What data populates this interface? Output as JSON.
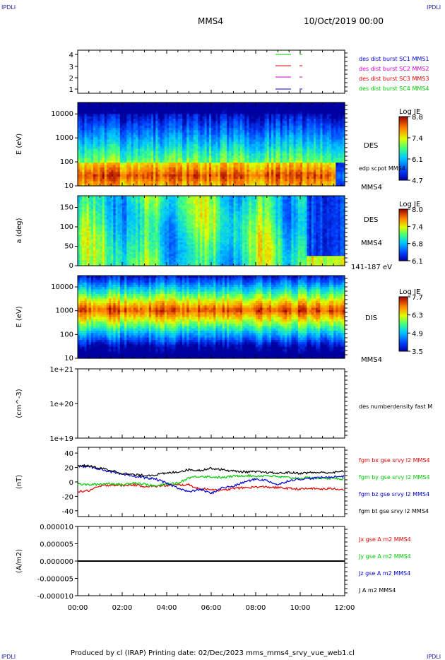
{
  "corner_logo": "IPDLI",
  "header": {
    "spacecraft": "MMS4",
    "datetime": "10/Oct/2019 00:00"
  },
  "footer": {
    "text": "Produced by cl (IRAP)   Printing date: 02/Dec/2023   mms_mms4_srvy_vue_web1.cl"
  },
  "colors": {
    "red": "#e00000",
    "green": "#00c800",
    "blue": "#0000d0",
    "magenta": "#d000d0",
    "black": "#000000"
  },
  "chart_data": [
    {
      "type": "line",
      "panel": "burst-availability",
      "yticks": [
        "1",
        "2",
        "3",
        "4"
      ],
      "legend": [
        {
          "label": "des dist burst SC1 MMS1",
          "color": "#0000d0"
        },
        {
          "label": "des dist burst SC2 MMS2",
          "color": "#d000d0"
        },
        {
          "label": "des dist burst SC3 MMS3",
          "color": "#e00000"
        },
        {
          "label": "des dist burst SC4 MMS4",
          "color": "#00c800"
        }
      ]
    },
    {
      "type": "heatmap",
      "panel": "electron-energy-spectrogram",
      "ylabel": "E (eV)",
      "yscale": "log",
      "ylim": [
        10,
        30000
      ],
      "yticks": [
        "10",
        "100",
        "1000",
        "10000"
      ],
      "colorbar": {
        "title": "Log JE",
        "ticks": [
          "8.8",
          "7.4",
          "6.1",
          "4.7"
        ],
        "range": [
          4.7,
          8.8
        ]
      },
      "labels": [
        "DES",
        "edp scpot MMS4",
        "MMS4"
      ]
    },
    {
      "type": "heatmap",
      "panel": "electron-pitch-angle",
      "ylabel": "a (deg)",
      "ylim": [
        0,
        180
      ],
      "yticks": [
        "0",
        "50",
        "100",
        "150"
      ],
      "colorbar": {
        "title": "Log JE",
        "ticks": [
          "8.0",
          "7.4",
          "6.8",
          "6.1"
        ],
        "range": [
          6.1,
          8.0
        ]
      },
      "labels": [
        "DES",
        "MMS4",
        "141-187 eV"
      ]
    },
    {
      "type": "heatmap",
      "panel": "ion-energy-spectrogram",
      "ylabel": "E (eV)",
      "yscale": "log",
      "ylim": [
        10,
        30000
      ],
      "yticks": [
        "10",
        "100",
        "1000",
        "10000"
      ],
      "colorbar": {
        "title": "Log JE",
        "ticks": [
          "7.7",
          "6.3",
          "4.9",
          "3.5"
        ],
        "range": [
          3.5,
          7.7
        ]
      },
      "labels": [
        "DIS",
        "MMS4"
      ]
    },
    {
      "type": "line",
      "panel": "number-density",
      "ylabel": "(cm^-3)",
      "yscale": "log",
      "ylim": [
        1e+19,
        1e+21
      ],
      "yticks": [
        "1e+19",
        "1e+20",
        "1e+21"
      ],
      "legend": [
        {
          "label": "des numberdensity fast M",
          "color": "#000000"
        }
      ],
      "series": []
    },
    {
      "type": "line",
      "panel": "magnetic-field",
      "ylabel": "(nT)",
      "ylim": [
        -48,
        48
      ],
      "yticks": [
        "-40",
        "-20",
        "0",
        "20",
        "40"
      ],
      "legend": [
        {
          "label": "fgm bx gse srvy l2 MMS4",
          "color": "#e00000"
        },
        {
          "label": "fgm by gse srvy l2 MMS4",
          "color": "#00c800"
        },
        {
          "label": "fgm bz gse srvy l2 MMS4",
          "color": "#0000d0"
        },
        {
          "label": "fgm bt gse srvy l2 MMS4",
          "color": "#000000"
        }
      ],
      "x_hours": [
        0,
        0.5,
        1,
        1.5,
        2,
        2.5,
        3,
        3.5,
        4,
        4.5,
        5,
        5.5,
        6,
        6.5,
        7,
        7.5,
        8,
        8.5,
        9,
        9.5,
        10,
        10.5,
        11,
        11.5,
        12
      ],
      "series": [
        {
          "name": "bx",
          "color": "#e00000",
          "values": [
            -14,
            -12,
            -6,
            -4,
            -5,
            -4,
            -6,
            -6,
            -5,
            -4,
            -4,
            -10,
            -10,
            -12,
            -9,
            -8,
            -7,
            -7,
            -8,
            -9,
            -10,
            -9,
            -10,
            -9,
            -11
          ]
        },
        {
          "name": "by",
          "color": "#00c800",
          "values": [
            -3,
            -4,
            -3,
            -2,
            -4,
            -1,
            -3,
            -6,
            -3,
            -2,
            6,
            8,
            7,
            6,
            8,
            9,
            8,
            9,
            7,
            6,
            5,
            6,
            5,
            5,
            4
          ]
        },
        {
          "name": "bz",
          "color": "#0000d0",
          "values": [
            22,
            21,
            18,
            14,
            10,
            8,
            6,
            4,
            -2,
            -8,
            -14,
            -10,
            -16,
            -8,
            -6,
            0,
            4,
            2,
            -4,
            2,
            4,
            5,
            6,
            7,
            8
          ]
        },
        {
          "name": "bt",
          "color": "#000000",
          "values": [
            23,
            22,
            19,
            16,
            12,
            10,
            9,
            10,
            12,
            14,
            17,
            16,
            19,
            17,
            15,
            14,
            14,
            13,
            12,
            13,
            12,
            13,
            13,
            13,
            15
          ]
        }
      ]
    },
    {
      "type": "line",
      "panel": "current-density",
      "ylabel": "(A/m2)",
      "ylim": [
        -1e-05,
        1e-05
      ],
      "yticks": [
        "0.000010",
        "0.000005",
        "0.000000",
        "-0.000005",
        "-0.000010"
      ],
      "legend": [
        {
          "label": "Jx gse A m2 MMS4",
          "color": "#e00000"
        },
        {
          "label": "Jy gse A m2 MMS4",
          "color": "#00c800"
        },
        {
          "label": "Jz gse A m2 MMS4",
          "color": "#0000d0"
        },
        {
          "label": "J A m2 MMS4",
          "color": "#000000"
        }
      ],
      "series": [
        {
          "name": "J",
          "color": "#000000",
          "values": [
            0,
            0
          ]
        }
      ]
    }
  ],
  "xaxis": {
    "ticks": [
      "00:00",
      "02:00",
      "04:00",
      "06:00",
      "08:00",
      "10:00",
      "12:00"
    ],
    "range_hours": [
      0,
      12
    ]
  }
}
